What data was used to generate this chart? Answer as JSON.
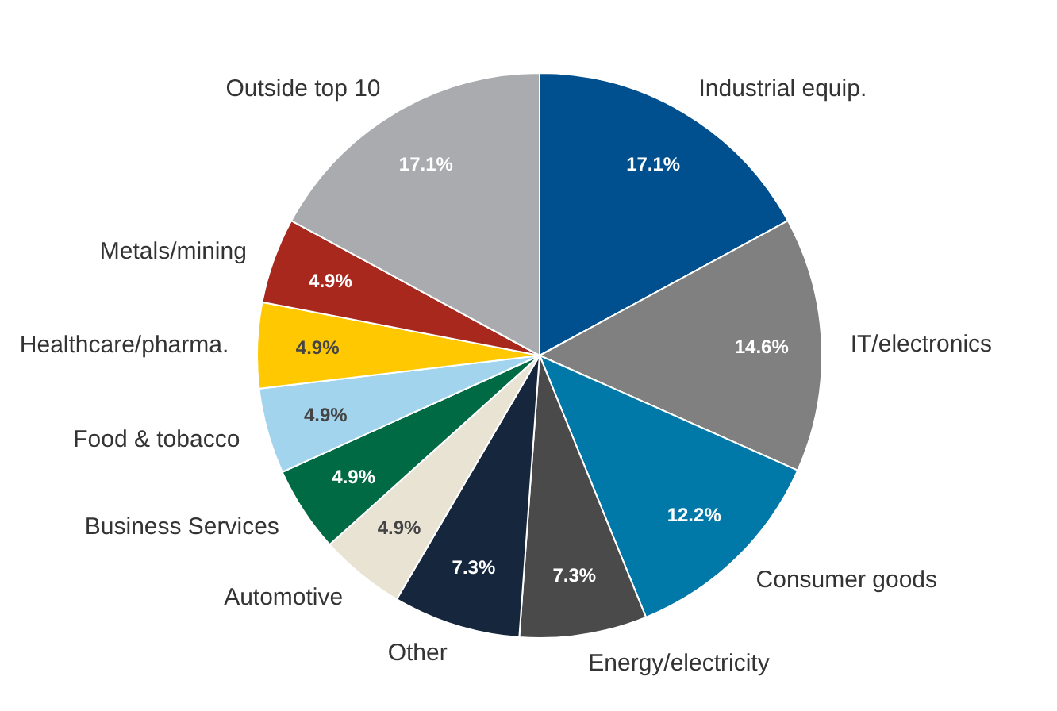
{
  "chart_data": {
    "type": "pie",
    "categories": [
      "Industrial equip.",
      "IT/electronics",
      "Consumer goods",
      "Energy/electricity",
      "Other",
      "Automotive",
      "Business Services",
      "Food & tobacco",
      "Healthcare/pharma.",
      "Metals/mining",
      "Outside top 10"
    ],
    "values": [
      17.1,
      14.6,
      12.2,
      7.3,
      7.3,
      4.9,
      4.9,
      4.9,
      4.9,
      4.9,
      17.1
    ],
    "value_labels": [
      "17.1%",
      "14.6%",
      "12.2%",
      "7.3%",
      "7.3%",
      "4.9%",
      "4.9%",
      "4.9%",
      "4.9%",
      "4.9%",
      "17.1%"
    ],
    "colors": [
      "#00508f",
      "#808080",
      "#0079a8",
      "#4a4a4a",
      "#16263d",
      "#e8e3d3",
      "#006a45",
      "#a2d4ed",
      "#ffc800",
      "#a8281e",
      "#a9abae"
    ]
  }
}
